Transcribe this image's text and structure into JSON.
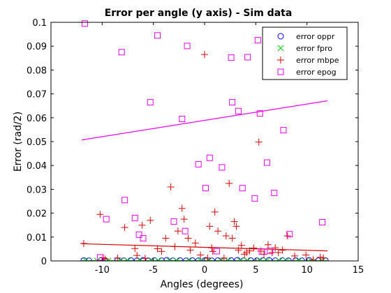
{
  "chart_data": {
    "type": "scatter",
    "title": "Error per angle (y axis)  - Sim data",
    "xlabel": "Angles (degrees)",
    "ylabel": "Error (rad/2)",
    "xlim": [
      -15,
      15
    ],
    "ylim": [
      0,
      0.1
    ],
    "xticks": [
      -10,
      -5,
      0,
      5,
      10,
      15
    ],
    "xtick_labels": [
      "-10",
      "-5",
      "0",
      "5",
      "10",
      "15"
    ],
    "yticks": [
      0,
      0.01,
      0.02,
      0.03,
      0.04,
      0.05,
      0.06,
      0.07,
      0.08,
      0.09,
      0.1
    ],
    "ytick_labels": [
      "0",
      "0.01",
      "0.02",
      "0.03",
      "0.04",
      "0.05",
      "0.06",
      "0.07",
      "0.08",
      "0.09",
      "0.1"
    ],
    "grid": false,
    "legend_position": "top-right",
    "series": [
      {
        "name": "error oppr",
        "marker": "circle",
        "color": "#0000ff",
        "x": [
          -11.8,
          -11.3,
          -10.1,
          -9.7,
          -8.5,
          -7.9,
          -7.2,
          -6.6,
          -6.0,
          -5.5,
          -4.9,
          -4.2,
          -3.7,
          -3.1,
          -2.4,
          -1.8,
          -1.2,
          -0.6,
          0.1,
          0.7,
          1.3,
          1.9,
          2.6,
          3.2,
          3.8,
          4.5,
          5.1,
          5.7,
          6.3,
          6.9,
          7.6,
          8.2,
          8.9,
          9.5,
          10.2,
          11.1,
          11.8
        ],
        "y": [
          0.0002,
          0.0001,
          0.0003,
          0.0001,
          0.0002,
          0.0001,
          0.0002,
          0.0001,
          0.0003,
          0.0001,
          0.0002,
          0.0001,
          0.0003,
          0.0001,
          0.0002,
          0.0001,
          0.0002,
          0.0001,
          0.0003,
          0.0001,
          0.0002,
          0.0001,
          0.0002,
          0.0003,
          0.0001,
          0.0002,
          0.0001,
          0.0002,
          0.0003,
          0.0001,
          0.0002,
          0.0001,
          0.0002,
          0.0001,
          0.0003,
          0.0001,
          0.0002
        ]
      },
      {
        "name": "error fpro",
        "marker": "x",
        "color": "#00cc00",
        "x": [
          -11.6,
          -10.5,
          -9.4,
          -8.2,
          -7.5,
          -6.3,
          -5.2,
          -4.5,
          -3.4,
          -2.7,
          -1.5,
          -0.4,
          0.4,
          1.6,
          2.3,
          3.5,
          4.2,
          5.4,
          6.1,
          7.3,
          8.0,
          9.2,
          10.4,
          11.5
        ],
        "y": [
          0.0001,
          0.0001,
          0.0001,
          0.0001,
          0.0001,
          0.0001,
          0.0001,
          0.0001,
          0.0001,
          0.0001,
          0.0001,
          0.0001,
          0.0001,
          0.0001,
          0.0001,
          0.0001,
          0.0001,
          0.0001,
          0.0001,
          0.0001,
          0.0001,
          0.0001,
          0.0001,
          0.0001
        ],
        "fit": {
          "x": [
            -12,
            12
          ],
          "y": [
            0.0001,
            0.0001
          ]
        }
      },
      {
        "name": "error mbpe",
        "marker": "plus",
        "color": "#dd0000",
        "x": [
          -11.8,
          -10.2,
          -9.9,
          -9.7,
          -8.5,
          -7.8,
          -6.8,
          -6.6,
          -6.1,
          -5.8,
          -5.3,
          -4.6,
          -4.2,
          -3.8,
          -3.3,
          -2.9,
          -2.6,
          -2.2,
          -2.0,
          -1.6,
          -1.4,
          -0.9,
          -0.4,
          0.0,
          0.3,
          0.5,
          0.7,
          0.8,
          1.0,
          1.3,
          1.9,
          2.1,
          2.4,
          2.7,
          2.9,
          3.1,
          3.3,
          3.6,
          3.9,
          4.1,
          4.4,
          4.8,
          5.3,
          5.5,
          5.8,
          6.2,
          6.6,
          6.9,
          7.2,
          7.6,
          8.1,
          8.8,
          9.9,
          10.6,
          11.3,
          11.6
        ],
        "y": [
          0.0073,
          0.0195,
          0.0013,
          0.0008,
          0.0012,
          0.014,
          0.0052,
          0.0023,
          0.015,
          0.0011,
          0.017,
          0.0051,
          0.004,
          0.0095,
          0.031,
          0.006,
          0.0125,
          0.022,
          0.0175,
          0.0095,
          0.0045,
          0.0075,
          0.0025,
          0.0865,
          0.0012,
          0.0145,
          0.0055,
          0.004,
          0.0205,
          0.0125,
          0.0012,
          0.0105,
          0.0325,
          0.0095,
          0.0165,
          0.0145,
          0.0045,
          0.0065,
          0.0028,
          0.0035,
          0.0042,
          0.0054,
          0.0498,
          0.0041,
          0.0028,
          0.0068,
          0.0035,
          0.0055,
          0.0035,
          0.0045,
          0.0105,
          0.0021,
          0.0025,
          0.0005,
          0.0015,
          0.0012
        ],
        "fit": {
          "x": [
            -12,
            12
          ],
          "y": [
            0.0072,
            0.0042
          ]
        }
      },
      {
        "name": "error epog",
        "marker": "square",
        "color": "#ee00ee",
        "x": [
          -11.7,
          -10.2,
          -9.6,
          -8.1,
          -7.8,
          -6.8,
          -6.4,
          -6.0,
          -5.3,
          -4.6,
          -3.0,
          -2.2,
          -1.9,
          -1.7,
          -0.6,
          0.1,
          0.5,
          1.2,
          1.7,
          2.6,
          2.7,
          3.3,
          3.7,
          4.2,
          4.9,
          5.2,
          5.4,
          5.6,
          6.1,
          6.4,
          6.8,
          7.7,
          8.3,
          11.5
        ],
        "y": [
          0.0995,
          0.0015,
          0.0175,
          0.0875,
          0.0255,
          0.018,
          0.011,
          0.0095,
          0.0665,
          0.0945,
          0.0165,
          0.0595,
          0.0125,
          0.0901,
          0.0405,
          0.0305,
          0.0432,
          0.0041,
          0.0392,
          0.0852,
          0.0665,
          0.0628,
          0.0305,
          0.0854,
          0.0262,
          0.0925,
          0.0618,
          0.0039,
          0.0412,
          0.0042,
          0.0285,
          0.0548,
          0.0112,
          0.0162
        ],
        "fit": {
          "x": [
            -12,
            12
          ],
          "y": [
            0.0507,
            0.0671
          ]
        }
      }
    ]
  }
}
